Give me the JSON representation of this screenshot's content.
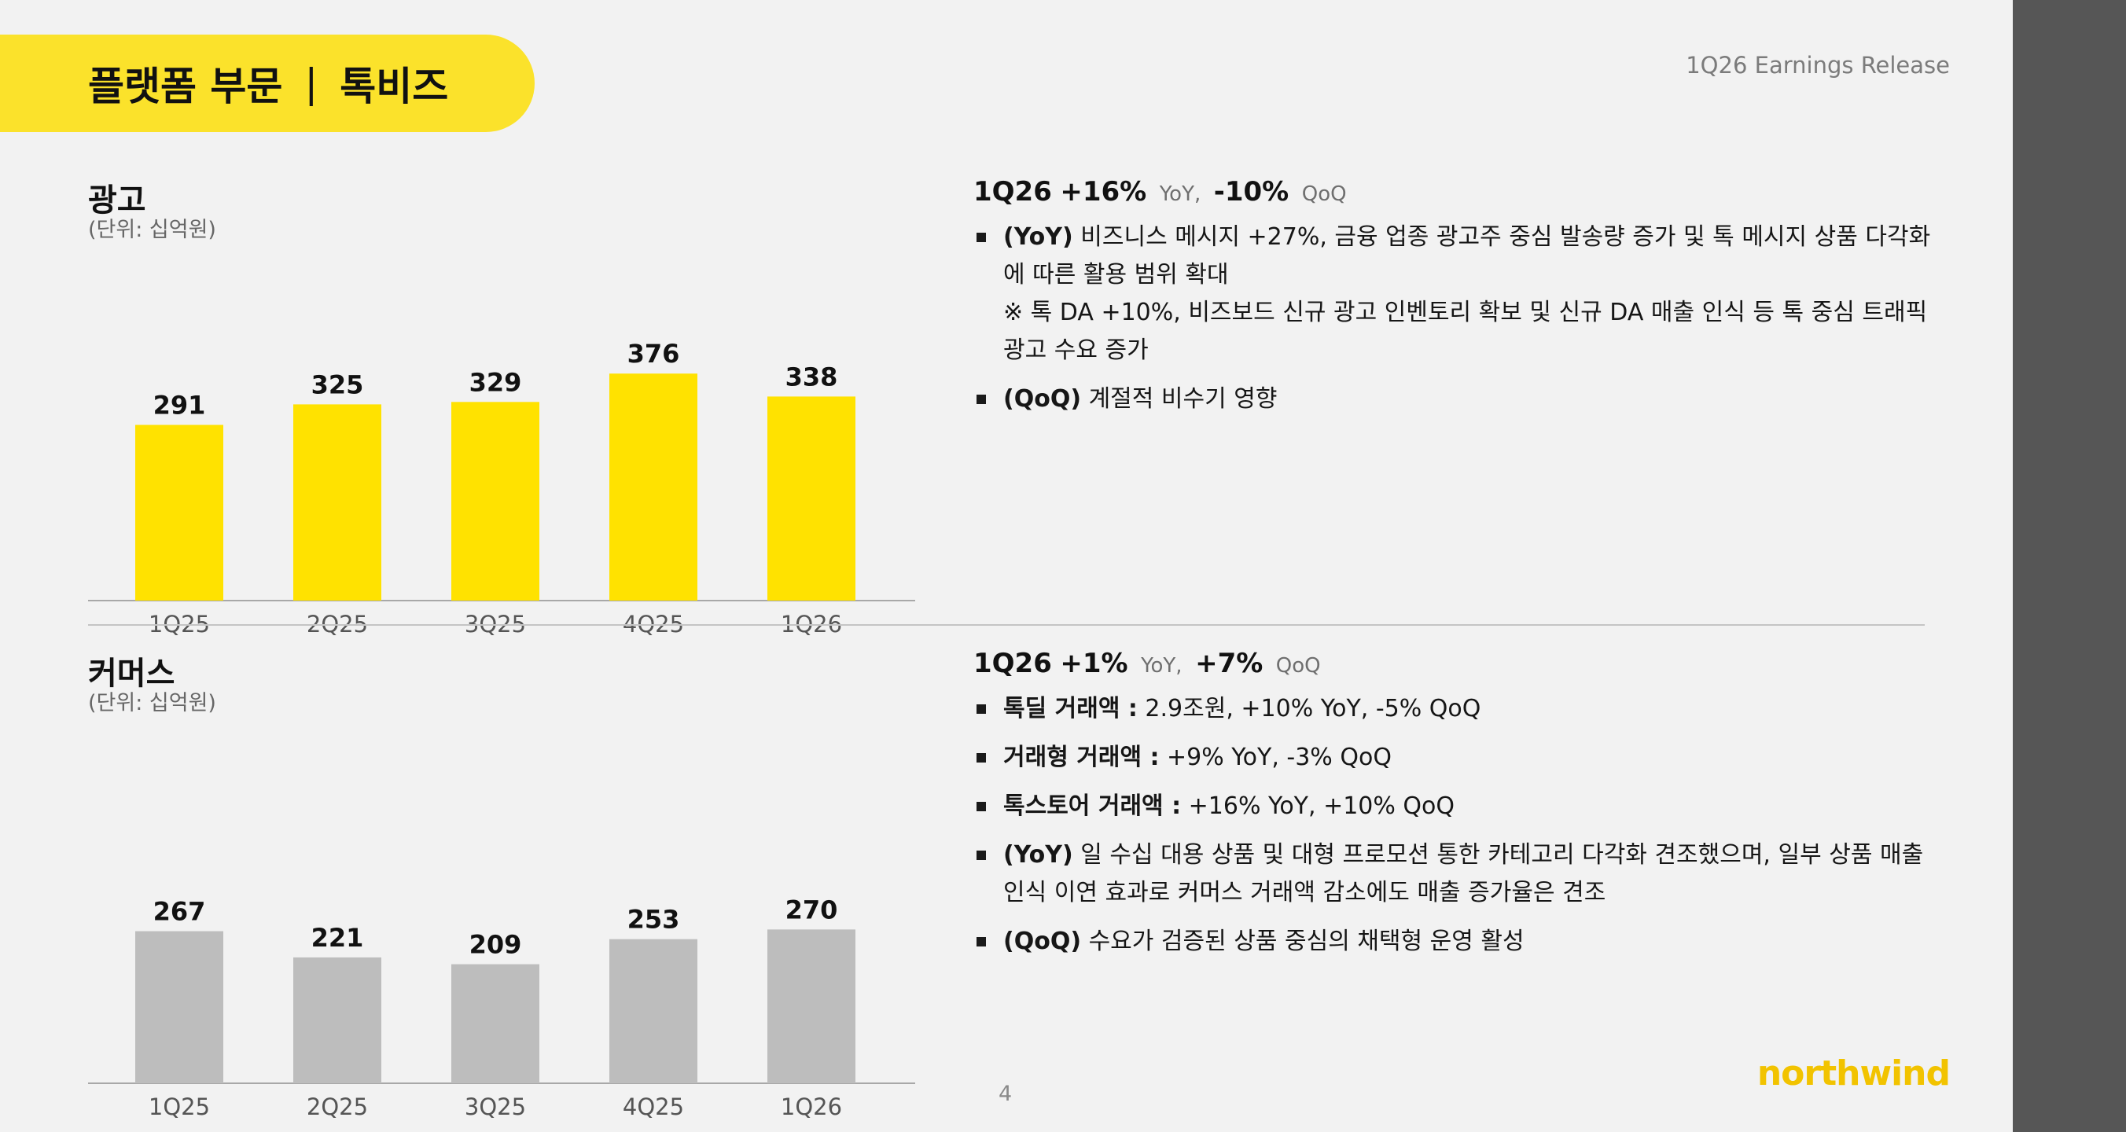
{
  "colors": {
    "accent": "#FBE22B",
    "bar_yellow": "#FFE200",
    "bar_gray": "#BDBDBD",
    "logo": "#F2C300",
    "sidebar": "#565656"
  },
  "header": {
    "title_part1": "플랫폼 부문",
    "separator": "|",
    "title_part2": "톡비즈",
    "release": "1Q26 Earnings Release"
  },
  "ads": {
    "title": "광고",
    "unit": "(단위: 십억원)",
    "headline": {
      "period": "1Q26",
      "yoy": "+16%",
      "yoy_label": "YoY,",
      "qoq": "-10%",
      "qoq_label": "QoQ"
    },
    "bullets": [
      {
        "bold": "(YoY)",
        "text": " 비즈니스 메시지 +27%, 금융 업종 광고주 중심 발송량 증가 및 톡 메시지 상품 다각화에 따른 활용 범위 확대",
        "note": "※ 톡 DA +10%, 비즈보드 신규 광고 인벤토리 확보 및 신규 DA 매출 인식 등 톡 중심 트래픽 광고 수요 증가"
      },
      {
        "bold": "(QoQ)",
        "text": " 계절적 비수기 영향",
        "note": ""
      }
    ]
  },
  "commerce": {
    "title": "커머스",
    "unit": "(단위: 십억원)",
    "headline": {
      "period": "1Q26",
      "yoy": "+1%",
      "yoy_label": "YoY,",
      "qoq": "+7%",
      "qoq_label": "QoQ"
    },
    "bullets": [
      {
        "bold": "톡딜 거래액 :",
        "text": " 2.9조원, +10% YoY, -5% QoQ",
        "note": ""
      },
      {
        "bold": "거래형 거래액 :",
        "text": " +9% YoY, -3% QoQ",
        "note": ""
      },
      {
        "bold": "톡스토어 거래액 :",
        "text": " +16% YoY, +10% QoQ",
        "note": ""
      },
      {
        "bold": "(YoY)",
        "text": " 일 수십 대용 상품 및 대형 프로모션 통한 카테고리 다각화 견조했으며, 일부 상품 매출 인식 이연 효과로 커머스 거래액 감소에도 매출 증가율은 견조",
        "note": ""
      },
      {
        "bold": "(QoQ)",
        "text": " 수요가 검증된 상품 중심의 채택형 운영 활성",
        "note": ""
      }
    ]
  },
  "chart_data": [
    {
      "type": "bar",
      "categories": [
        "1Q25",
        "2Q25",
        "3Q25",
        "4Q25",
        "1Q26"
      ],
      "values": [
        291,
        325,
        329,
        376,
        338
      ],
      "ylim": [
        0,
        500
      ],
      "grid": false
    },
    {
      "type": "bar",
      "categories": [
        "1Q25",
        "2Q25",
        "3Q25",
        "4Q25",
        "1Q26"
      ],
      "values": [
        267,
        221,
        209,
        253,
        270
      ],
      "ylim": [
        0,
        530
      ],
      "grid": false
    }
  ],
  "footer": {
    "page": "4",
    "logo": "northwind"
  }
}
